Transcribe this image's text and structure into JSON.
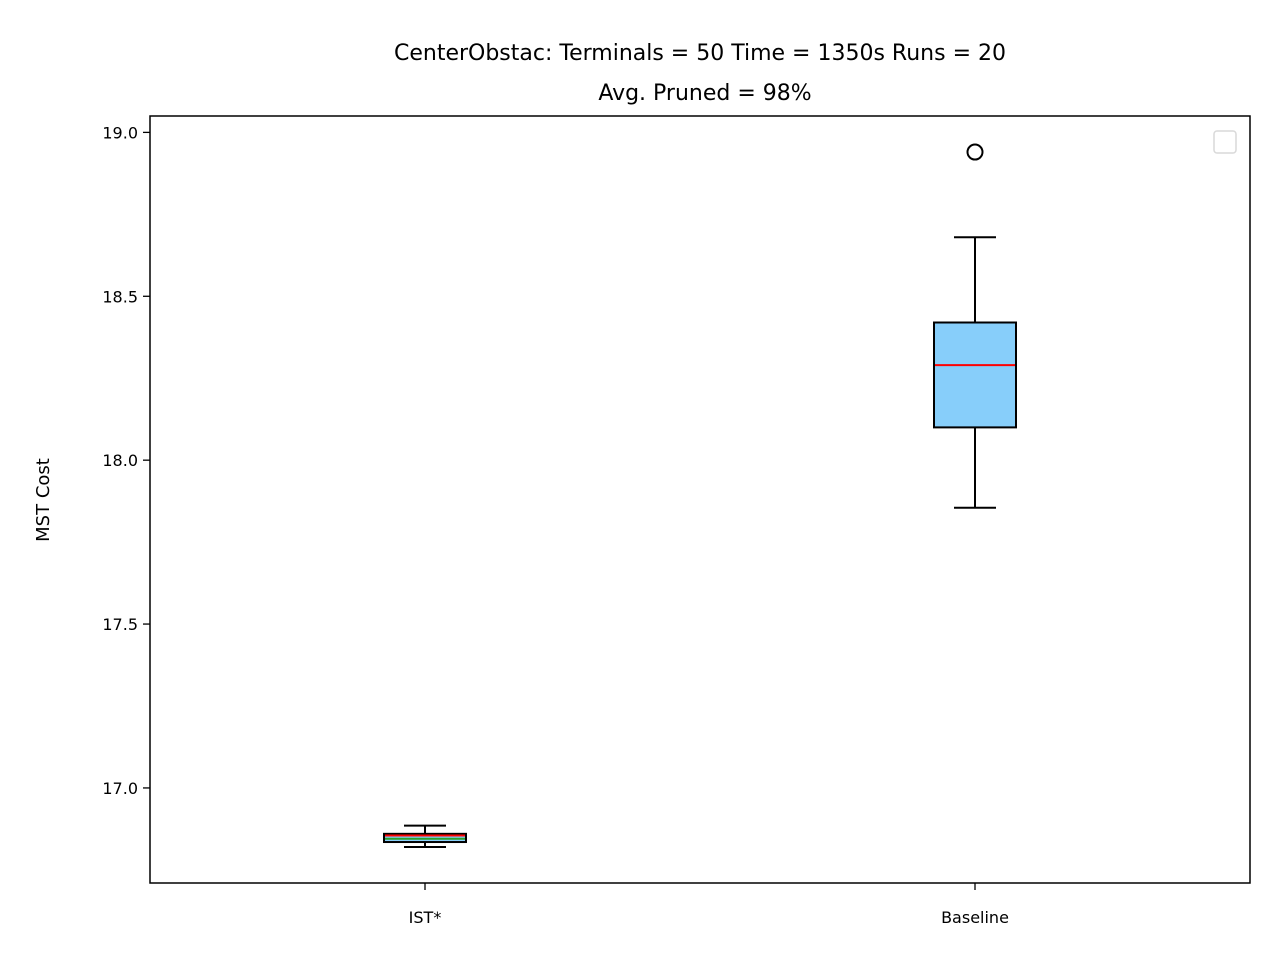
{
  "chart_data": {
    "type": "box",
    "title_line1": "CenterObstac:  Terminals = 50  Time = 1350s  Runs = 20",
    "title_line2": "Avg. Pruned = 98%",
    "xlabel": "",
    "ylabel": "MST Cost",
    "ylim": [
      16.71,
      19.05
    ],
    "yticks": [
      17.0,
      17.5,
      18.0,
      18.5,
      19.0
    ],
    "ytick_labels": [
      "17.0",
      "17.5",
      "18.0",
      "18.5",
      "19.0"
    ],
    "categories": [
      "IST*",
      "Baseline"
    ],
    "boxes": [
      {
        "label": "IST*",
        "whisker_low": 16.82,
        "q1": 16.835,
        "median": 16.855,
        "mean": 16.845,
        "q3": 16.86,
        "whisker_high": 16.885,
        "outliers": [],
        "fill": "#87CEFA"
      },
      {
        "label": "Baseline",
        "whisker_low": 17.855,
        "q1": 18.1,
        "median": 18.29,
        "q3": 18.42,
        "whisker_high": 18.68,
        "outliers": [
          18.94
        ],
        "fill": "#87CEFA"
      }
    ],
    "median_color": "#ff0000",
    "mean_color": "#2ca02c",
    "legend": "top-right",
    "grid": false
  }
}
